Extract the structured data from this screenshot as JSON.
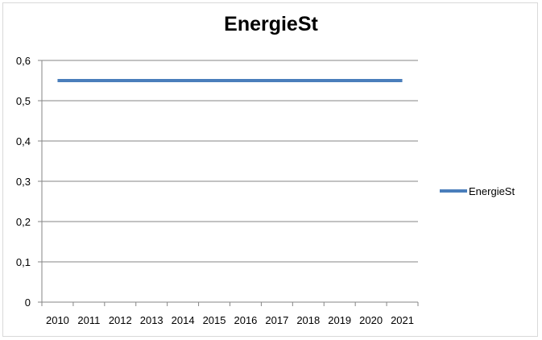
{
  "chart_data": {
    "type": "line",
    "title": "EnergieSt",
    "xlabel": "",
    "ylabel": "",
    "categories": [
      "2010",
      "2011",
      "2012",
      "2013",
      "2014",
      "2015",
      "2016",
      "2017",
      "2018",
      "2019",
      "2020",
      "2021"
    ],
    "series": [
      {
        "name": "EnergieSt",
        "color": "#4a7ebb",
        "values": [
          0.55,
          0.55,
          0.55,
          0.55,
          0.55,
          0.55,
          0.55,
          0.55,
          0.55,
          0.55,
          0.55,
          0.55
        ]
      }
    ],
    "ylim": [
      0,
      0.6
    ],
    "yticks": [
      {
        "value": 0,
        "label": "0"
      },
      {
        "value": 0.1,
        "label": "0,1"
      },
      {
        "value": 0.2,
        "label": "0,2"
      },
      {
        "value": 0.3,
        "label": "0,3"
      },
      {
        "value": 0.4,
        "label": "0,4"
      },
      {
        "value": 0.5,
        "label": "0,5"
      },
      {
        "value": 0.6,
        "label": "0,6"
      }
    ],
    "grid": true,
    "legend_position": "right",
    "gridline_color": "#868686"
  }
}
